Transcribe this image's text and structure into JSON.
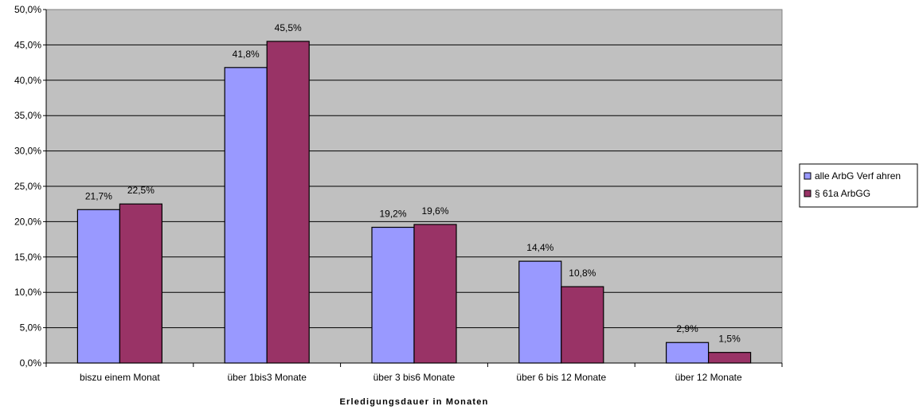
{
  "chart_data": {
    "type": "bar",
    "title": "",
    "xlabel": "Erledigungsdauer in Monaten",
    "ylabel": "",
    "ylim": [
      0,
      50
    ],
    "yticks": [
      "0,0%",
      "5,0%",
      "10,0%",
      "15,0%",
      "20,0%",
      "25,0%",
      "30,0%",
      "35,0%",
      "40,0%",
      "45,0%",
      "50,0%"
    ],
    "grid": true,
    "legend_position": "right",
    "categories": [
      "biszu einem Monat",
      "über 1bis3 Monate",
      "über 3 bis6 Monate",
      "über 6 bis 12 Monate",
      "über 12 Monate"
    ],
    "series": [
      {
        "name": "alle ArbG Verf ahren",
        "color": "#9999ff",
        "values": [
          21.7,
          41.8,
          19.2,
          14.4,
          2.9
        ],
        "labels": [
          "21,7%",
          "41,8%",
          "19,2%",
          "14,4%",
          "2,9%"
        ]
      },
      {
        "name": "§ 61a ArbGG",
        "color": "#993366",
        "values": [
          22.5,
          45.5,
          19.6,
          10.8,
          1.5
        ],
        "labels": [
          "22,5%",
          "45,5%",
          "19,6%",
          "10,8%",
          "1,5%"
        ]
      }
    ],
    "plot_background": "#c0c0c0"
  }
}
